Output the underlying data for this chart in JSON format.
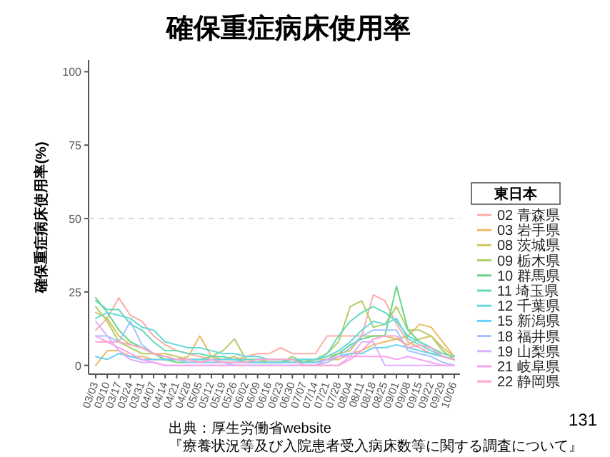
{
  "chart_data": {
    "type": "line",
    "title": "確保重症病床使用率",
    "ylabel": "確保重症病床使用率(%)",
    "legend_title": "東日本",
    "legend": "right",
    "categories": [
      "03/03",
      "03/10",
      "03/17",
      "03/24",
      "03/31",
      "04/07",
      "04/14",
      "04/21",
      "04/28",
      "05/05",
      "05/12",
      "05/19",
      "05/26",
      "06/02",
      "06/09",
      "06/16",
      "06/23",
      "06/30",
      "07/07",
      "07/14",
      "07/21",
      "07/28",
      "08/04",
      "08/11",
      "08/18",
      "08/25",
      "09/01",
      "09/08",
      "09/15",
      "09/22",
      "09/29",
      "10/06"
    ],
    "ylim": [
      -3,
      104
    ],
    "yticks": [
      0,
      25,
      50,
      75,
      100
    ],
    "ref_lines": [
      {
        "axis": "y",
        "value": 50,
        "line_style": "dashed",
        "color": "#d9d9d9"
      }
    ],
    "annotations": [
      "出典：厚生労働省website",
      "『療養状況等及び入院患者受入病床数等に関する調査について』",
      "131"
    ],
    "series": [
      {
        "name": "02 青森県",
        "color": "#fbada7",
        "values": [
          12,
          16,
          23,
          17,
          15,
          10,
          7,
          5,
          4,
          3,
          2,
          2,
          2,
          3,
          4,
          4,
          6,
          4,
          4,
          4,
          10,
          10,
          10,
          10,
          24,
          22,
          14,
          8,
          6,
          4,
          3,
          2
        ]
      },
      {
        "name": "03 岩手県",
        "color": "#ebba66",
        "values": [
          0,
          5,
          5,
          3,
          3,
          2,
          2,
          2,
          3,
          10,
          3,
          2,
          2,
          2,
          2,
          2,
          2,
          2,
          2,
          2,
          2,
          2,
          4,
          5,
          7,
          8,
          9,
          10,
          14,
          13,
          8,
          3
        ]
      },
      {
        "name": "08 茨城県",
        "color": "#d4c566",
        "values": [
          18,
          16,
          10,
          7,
          6,
          4,
          4,
          3,
          2,
          2,
          2,
          2,
          3,
          1,
          1,
          1,
          1,
          1,
          1,
          2,
          3,
          4,
          5,
          10,
          10,
          10,
          9,
          7,
          9,
          10,
          6,
          3
        ]
      },
      {
        "name": "09 栃木県",
        "color": "#b0ce66",
        "values": [
          20,
          15,
          8,
          6,
          4,
          4,
          2,
          2,
          2,
          2,
          3,
          5,
          9,
          2,
          2,
          1,
          1,
          3,
          1,
          2,
          4,
          8,
          20,
          22,
          13,
          14,
          20,
          12,
          12,
          10,
          5,
          2
        ]
      },
      {
        "name": "10 群馬県",
        "color": "#66d688",
        "values": [
          23,
          18,
          12,
          8,
          6,
          4,
          2,
          1,
          1,
          1,
          1,
          1,
          1,
          1,
          1,
          1,
          1,
          2,
          1,
          1,
          2,
          4,
          7,
          9,
          10,
          10,
          27,
          12,
          8,
          6,
          3,
          2
        ]
      },
      {
        "name": "11 埼玉県",
        "color": "#66d9b9",
        "values": [
          22,
          19,
          19,
          14,
          12,
          8,
          5,
          5,
          4,
          4,
          3,
          3,
          2,
          2,
          2,
          2,
          2,
          2,
          2,
          2,
          4,
          10,
          15,
          18,
          20,
          18,
          15,
          10,
          8,
          6,
          4,
          3
        ]
      },
      {
        "name": "12 千葉県",
        "color": "#66d9dc",
        "values": [
          16,
          18,
          17,
          16,
          13,
          12,
          8,
          7,
          6,
          6,
          5,
          4,
          4,
          3,
          3,
          2,
          2,
          2,
          2,
          2,
          3,
          5,
          8,
          12,
          15,
          14,
          16,
          9,
          7,
          5,
          3,
          2
        ]
      },
      {
        "name": "15 新潟県",
        "color": "#66d2f6",
        "values": [
          3,
          2,
          4,
          3,
          2,
          2,
          2,
          2,
          2,
          2,
          2,
          2,
          2,
          1,
          1,
          1,
          1,
          1,
          1,
          1,
          2,
          3,
          4,
          4,
          6,
          6,
          7,
          6,
          5,
          4,
          3,
          2
        ]
      },
      {
        "name": "18 福井県",
        "color": "#a0c4ff",
        "values": [
          10,
          10,
          8,
          15,
          7,
          4,
          3,
          2,
          1,
          1,
          1,
          1,
          0,
          0,
          0,
          0,
          0,
          0,
          0,
          0,
          1,
          3,
          6,
          10,
          12,
          12,
          12,
          5,
          4,
          3,
          1,
          0
        ]
      },
      {
        "name": "19 山梨県",
        "color": "#ddb0ff",
        "values": [
          15,
          10,
          5,
          2,
          1,
          1,
          0,
          0,
          0,
          0,
          0,
          0,
          0,
          0,
          0,
          0,
          0,
          0,
          0,
          0,
          0,
          0,
          3,
          8,
          8,
          0,
          0,
          0,
          0,
          0,
          0,
          0
        ]
      },
      {
        "name": "21 岐阜県",
        "color": "#f9a2ee",
        "values": [
          10,
          8,
          6,
          4,
          2,
          1,
          0,
          0,
          0,
          0,
          0,
          0,
          0,
          0,
          0,
          0,
          0,
          0,
          0,
          0,
          2,
          3,
          3,
          3,
          3,
          3,
          2,
          3,
          2,
          1,
          0,
          0
        ]
      },
      {
        "name": "22 静岡県",
        "color": "#ffa2d0",
        "values": [
          8,
          8,
          8,
          7,
          6,
          4,
          3,
          2,
          2,
          1,
          2,
          1,
          1,
          1,
          2,
          2,
          2,
          2,
          0,
          0,
          0,
          0,
          2,
          5,
          9,
          10,
          10,
          6,
          7,
          6,
          3,
          2
        ]
      }
    ]
  }
}
